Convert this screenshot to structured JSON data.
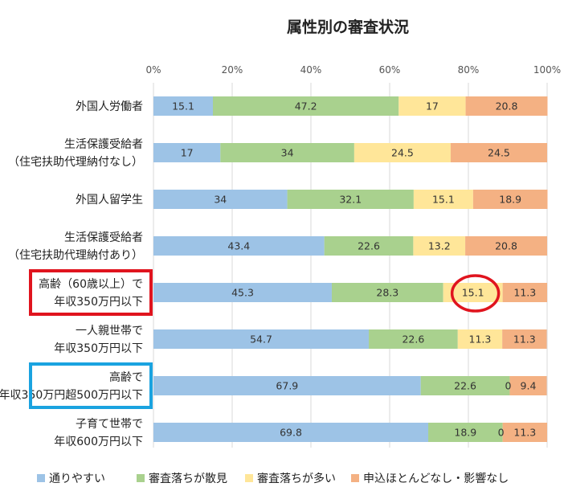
{
  "chart_data": {
    "type": "bar",
    "orientation": "horizontal",
    "stacked": true,
    "percent": true,
    "title": "属性別の審査状況",
    "xlim": [
      0,
      100
    ],
    "x_ticks": [
      "0%",
      "20%",
      "40%",
      "60%",
      "80%",
      "100%"
    ],
    "grid": true,
    "legend_position": "bottom",
    "categories": [
      [
        "外国人労働者"
      ],
      [
        "生活保護受給者",
        "（住宅扶助代理納付なし）"
      ],
      [
        "外国人留学生"
      ],
      [
        "生活保護受給者",
        "（住宅扶助代理納付あり）"
      ],
      [
        "高齢（60歳以上）で",
        "年収350万円以下"
      ],
      [
        "一人親世帯で",
        "年収350万円以下"
      ],
      [
        "高齢で",
        "年収350万円超500万円以下"
      ],
      [
        "子育て世帯で",
        "年収600万円以下"
      ]
    ],
    "series": [
      {
        "name": "通りやすい",
        "color": "#9DC3E6",
        "values": [
          15.1,
          17,
          34,
          43.4,
          45.3,
          54.7,
          67.9,
          69.8
        ]
      },
      {
        "name": "審査落ちが散見",
        "color": "#A9D18E",
        "values": [
          47.2,
          34,
          32.1,
          22.6,
          28.3,
          22.6,
          22.6,
          18.9
        ]
      },
      {
        "name": "審査落ちが多い",
        "color": "#FFE699",
        "values": [
          17,
          24.5,
          15.1,
          13.2,
          15.1,
          11.3,
          0,
          0
        ]
      },
      {
        "name": "申込ほとんどなし・影響なし",
        "color": "#F4B183",
        "values": [
          20.8,
          24.5,
          18.9,
          20.8,
          11.3,
          11.3,
          9.4,
          11.3
        ]
      }
    ],
    "annotations": [
      {
        "type": "box",
        "target": "category",
        "index": 4,
        "color": "#E0141E"
      },
      {
        "type": "box",
        "target": "category",
        "index": 6,
        "color": "#1AA3E0"
      },
      {
        "type": "circle",
        "target": "value",
        "category_index": 4,
        "series_index": 2,
        "color": "#E0141E"
      }
    ]
  }
}
